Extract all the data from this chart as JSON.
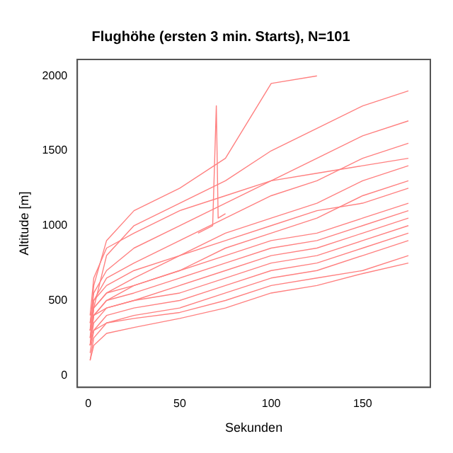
{
  "chart_data": {
    "type": "line",
    "title": "Flughöhe (ersten 3 min. Starts), N=101",
    "xlabel": "Sekunden",
    "ylabel": "Altitude [m]",
    "x": [
      1,
      3,
      10,
      25,
      50,
      75,
      100,
      125,
      150,
      175
    ],
    "xlim": [
      -6,
      187
    ],
    "ylim": [
      -80,
      2110
    ],
    "xticks": [
      0,
      50,
      100,
      150
    ],
    "yticks": [
      0,
      500,
      1000,
      1500,
      2000
    ],
    "grid": false,
    "legend": false,
    "marker": "none",
    "line_style": "solid",
    "series": [
      {
        "color": "#ff8080",
        "values": [
          200,
          450,
          800,
          1000,
          1150,
          1300,
          1500,
          1650,
          1800,
          1900
        ]
      },
      {
        "color": "#ff8080",
        "values": [
          300,
          600,
          900,
          1100,
          1250,
          1450,
          1950,
          2000,
          null,
          null
        ]
      },
      {
        "color": "#ff8080",
        "values": [
          350,
          550,
          700,
          850,
          1000,
          1150,
          1300,
          1450,
          1600,
          1700
        ]
      },
      {
        "color": "#ff8080",
        "values": [
          250,
          500,
          650,
          750,
          900,
          1050,
          1200,
          1300,
          1450,
          1550
        ]
      },
      {
        "color": "#ff8080",
        "values": [
          300,
          450,
          550,
          650,
          800,
          950,
          1050,
          1150,
          1300,
          1400
        ]
      },
      {
        "color": "#ff8080",
        "values": [
          200,
          400,
          500,
          600,
          700,
          850,
          950,
          1050,
          1200,
          1300
        ]
      },
      {
        "color": "#ff8080",
        "values": [
          350,
          500,
          600,
          700,
          800,
          900,
          1000,
          1100,
          1150,
          1250
        ]
      },
      {
        "color": "#ff8080",
        "values": [
          300,
          450,
          550,
          600,
          700,
          800,
          900,
          950,
          1050,
          1150
        ]
      },
      {
        "color": "#ff8080",
        "values": [
          250,
          400,
          500,
          550,
          650,
          750,
          850,
          900,
          1000,
          1100
        ]
      },
      {
        "color": "#ff8080",
        "values": [
          200,
          350,
          450,
          500,
          600,
          700,
          800,
          850,
          950,
          1050
        ]
      },
      {
        "color": "#ff8080",
        "values": [
          300,
          400,
          450,
          500,
          550,
          650,
          750,
          800,
          900,
          1000
        ]
      },
      {
        "color": "#ff8080",
        "values": [
          150,
          300,
          400,
          450,
          500,
          600,
          700,
          750,
          850,
          950
        ]
      },
      {
        "color": "#ff8080",
        "values": [
          100,
          250,
          350,
          400,
          450,
          550,
          650,
          700,
          800,
          900
        ]
      },
      {
        "color": "#ff8080",
        "values": [
          200,
          300,
          350,
          380,
          420,
          500,
          600,
          650,
          700,
          800
        ]
      },
      {
        "color": "#ff8080",
        "values": [
          100,
          200,
          280,
          320,
          380,
          450,
          550,
          600,
          680,
          750
        ]
      },
      {
        "color": "#ff8080",
        "values": [
          400,
          650,
          850,
          950,
          1100,
          1200,
          1300,
          1350,
          1400,
          1450
        ]
      },
      {
        "color": "#ff8080",
        "x": [
          60,
          68,
          70,
          71,
          75
        ],
        "values": [
          950,
          1000,
          1800,
          1050,
          1080
        ]
      }
    ]
  }
}
